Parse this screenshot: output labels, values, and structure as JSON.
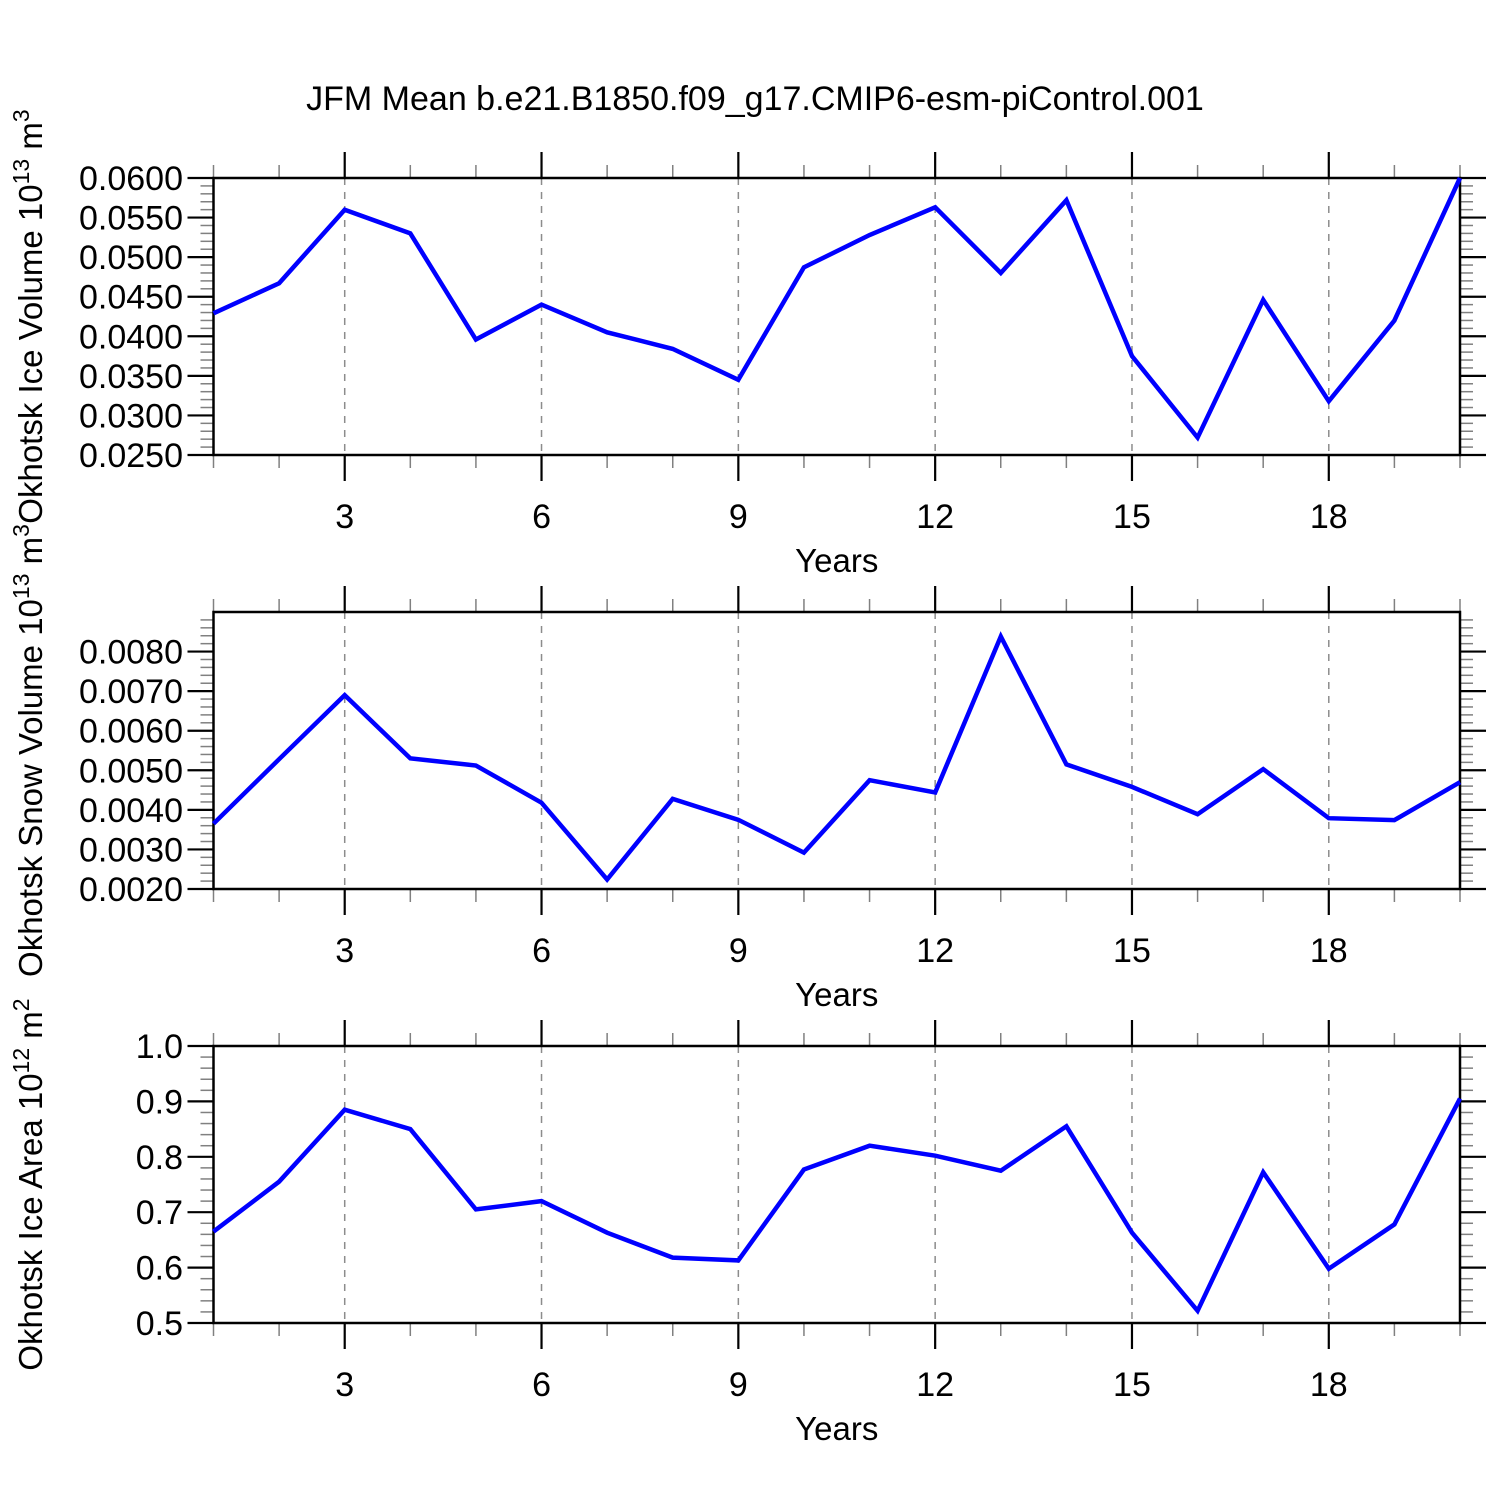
{
  "title": "JFM Mean b.e21.B1850.f09_g17.CMIP6-esm-piControl.001",
  "colors": {
    "line": "#0000ff",
    "grid": "#8c8c8c",
    "frame": "#000000",
    "minor_tick": "#808080",
    "background": "#ffffff"
  },
  "xlabel": "Years",
  "chart_data": [
    {
      "type": "line",
      "name": "ice-volume",
      "ylabel_base": "Okhotsk Ice Volume 10",
      "ylabel_exp": "13",
      "ylabel_unit": " m",
      "ylabel_unit_exp": "3",
      "xlabel": "Years",
      "xlim": [
        1,
        20
      ],
      "x": [
        1,
        2,
        3,
        4,
        5,
        6,
        7,
        8,
        9,
        10,
        11,
        12,
        13,
        14,
        15,
        16,
        17,
        18,
        19,
        20
      ],
      "values": [
        0.0429,
        0.0467,
        0.056,
        0.053,
        0.0396,
        0.044,
        0.0405,
        0.0384,
        0.0345,
        0.0487,
        0.0528,
        0.0563,
        0.048,
        0.0572,
        0.0375,
        0.0272,
        0.0446,
        0.0318,
        0.042,
        0.06
      ],
      "ylim": [
        0.025,
        0.06
      ],
      "ytick_values": [
        0.025,
        0.03,
        0.035,
        0.04,
        0.045,
        0.05,
        0.055,
        0.06
      ],
      "ytick_labels": [
        "0.0250",
        "0.0300",
        "0.0350",
        "0.0400",
        "0.0450",
        "0.0500",
        "0.0550",
        "0.0600"
      ],
      "ymajor_step": 0.005,
      "yminor_step": 0.001,
      "xticks_major": [
        3,
        6,
        9,
        12,
        15,
        18
      ],
      "xminor_step": 1,
      "grid": true
    },
    {
      "type": "line",
      "name": "snow-volume",
      "ylabel_base": "Okhotsk Snow Volume 10",
      "ylabel_exp": "13",
      "ylabel_unit": " m",
      "ylabel_unit_exp": "3",
      "xlabel": "Years",
      "xlim": [
        1,
        20
      ],
      "x": [
        1,
        2,
        3,
        4,
        5,
        6,
        7,
        8,
        9,
        10,
        11,
        12,
        13,
        14,
        15,
        16,
        17,
        18,
        19,
        20
      ],
      "values": [
        0.00365,
        0.00528,
        0.0069,
        0.0053,
        0.00512,
        0.00418,
        0.00224,
        0.00428,
        0.00375,
        0.00292,
        0.00475,
        0.00444,
        0.00838,
        0.00515,
        0.00458,
        0.00389,
        0.00503,
        0.00379,
        0.00374,
        0.0047
      ],
      "ylim": [
        0.002,
        0.009
      ],
      "ytick_values": [
        0.002,
        0.003,
        0.004,
        0.005,
        0.006,
        0.007,
        0.008
      ],
      "ytick_labels": [
        "0.0020",
        "0.0030",
        "0.0040",
        "0.0050",
        "0.0060",
        "0.0070",
        "0.0080"
      ],
      "ymajor_step": 0.001,
      "yminor_step": 0.0002,
      "xticks_major": [
        3,
        6,
        9,
        12,
        15,
        18
      ],
      "xminor_step": 1,
      "grid": true
    },
    {
      "type": "line",
      "name": "ice-area",
      "ylabel_base": "Okhotsk Ice Area 10",
      "ylabel_exp": "12",
      "ylabel_unit": " m",
      "ylabel_unit_exp": "2",
      "xlabel": "Years",
      "xlim": [
        1,
        20
      ],
      "x": [
        1,
        2,
        3,
        4,
        5,
        6,
        7,
        8,
        9,
        10,
        11,
        12,
        13,
        14,
        15,
        16,
        17,
        18,
        19,
        20
      ],
      "values": [
        0.665,
        0.755,
        0.885,
        0.85,
        0.705,
        0.72,
        0.663,
        0.618,
        0.613,
        0.777,
        0.82,
        0.802,
        0.775,
        0.855,
        0.663,
        0.522,
        0.772,
        0.598,
        0.678,
        0.905
      ],
      "ylim": [
        0.5,
        1.0
      ],
      "ytick_values": [
        0.5,
        0.6,
        0.7,
        0.8,
        0.9,
        1.0
      ],
      "ytick_labels": [
        "0.5",
        "0.6",
        "0.7",
        "0.8",
        "0.9",
        "1.0"
      ],
      "ymajor_step": 0.1,
      "yminor_step": 0.02,
      "xticks_major": [
        3,
        6,
        9,
        12,
        15,
        18
      ],
      "xminor_step": 1,
      "grid": true
    }
  ]
}
